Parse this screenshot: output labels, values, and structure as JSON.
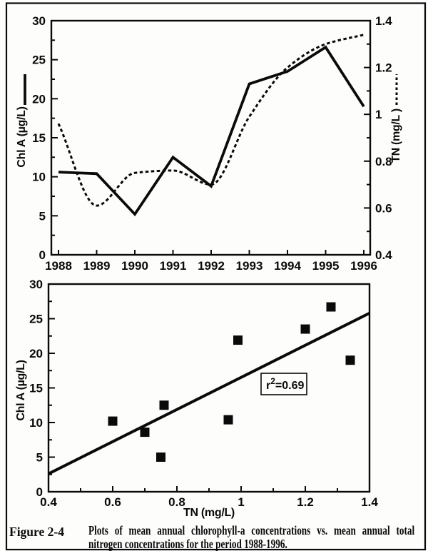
{
  "page": {
    "background": "#fdfdfc",
    "ink_color": "#0a0a0a"
  },
  "chart_data": [
    {
      "type": "line",
      "x": [
        1988,
        1989,
        1990,
        1991,
        1992,
        1993,
        1994,
        1995,
        1996
      ],
      "series": [
        {
          "name": "Chl A (µg/L)",
          "style": "solid",
          "axis": "left",
          "values": [
            10.6,
            10.4,
            5.2,
            12.5,
            8.8,
            21.9,
            23.5,
            26.6,
            19.0
          ]
        },
        {
          "name": "TN (mg/L)",
          "style": "dashed",
          "axis": "right",
          "values": [
            0.96,
            0.61,
            0.75,
            0.76,
            0.7,
            0.99,
            1.2,
            1.3,
            1.34
          ]
        }
      ],
      "left_axis": {
        "label": "Chl A (µg/L)",
        "min": 0,
        "max": 30,
        "major_step": 5,
        "minor_step": 2.5,
        "tick_labels": [
          "0",
          "5",
          "10",
          "15",
          "20",
          "25",
          "30"
        ]
      },
      "right_axis": {
        "label": "TN (mg/L )",
        "min": 0.4,
        "max": 1.4,
        "major_step": 0.2,
        "minor_step": 0.1,
        "tick_labels": [
          "0.4",
          "0.6",
          "0.8",
          "1",
          "1.2",
          "1.4"
        ]
      },
      "x_axis": {
        "tick_labels": [
          "1988",
          "1989",
          "1990",
          "1991",
          "1992",
          "1993",
          "1994",
          "1995",
          "1996"
        ]
      },
      "grid": false,
      "legend_position": "axis-titles"
    },
    {
      "type": "scatter",
      "points": [
        [
          0.6,
          10.2
        ],
        [
          0.7,
          8.6
        ],
        [
          0.75,
          5.0
        ],
        [
          0.76,
          12.5
        ],
        [
          0.96,
          10.4
        ],
        [
          0.99,
          21.9
        ],
        [
          1.2,
          23.5
        ],
        [
          1.28,
          26.7
        ],
        [
          1.34,
          19.0
        ]
      ],
      "regression_line": {
        "x1": 0.4,
        "y1": 2.6,
        "x2": 1.4,
        "y2": 25.8
      },
      "annotation": "r²=0.69",
      "x_axis": {
        "label": "TN (mg/L)",
        "min": 0.4,
        "max": 1.4,
        "major_step": 0.2,
        "minor_step": 0.1,
        "tick_labels": [
          "0.4",
          "0.6",
          "0.8",
          "1",
          "1.2",
          "1.4"
        ]
      },
      "y_axis": {
        "label": "Chl A (µg/L)",
        "min": 0,
        "max": 30,
        "major_step": 5,
        "minor_step": 2.5,
        "tick_labels": [
          "0",
          "5",
          "10",
          "15",
          "20",
          "25",
          "30"
        ]
      },
      "grid": false
    }
  ],
  "caption": {
    "label": "Figure 2-4",
    "lines": [
      "Plots of mean annual chlorophyll-a concentrations vs.  mean annual total",
      "nitrogen concentrations for the period 1988-1996."
    ]
  }
}
